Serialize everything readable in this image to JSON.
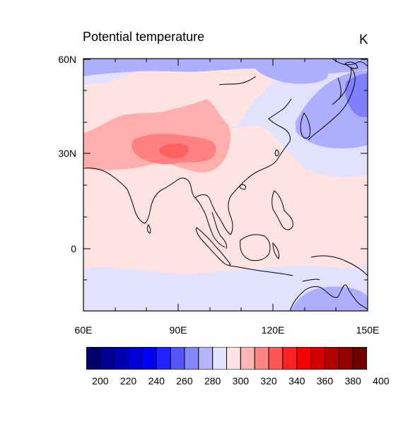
{
  "map": {
    "title": "Potential temperature",
    "units": "K",
    "lat_ticks": [
      "60N",
      "30N",
      "0"
    ],
    "lon_ticks": [
      "60E",
      "90E",
      "120E",
      "150E"
    ],
    "extent": {
      "lon_min": 60,
      "lon_max": 150,
      "lat_min": -20,
      "lat_max": 60
    }
  },
  "colorbar": {
    "colors": [
      "#00006e",
      "#000093",
      "#0000b3",
      "#0000d4",
      "#0000f5",
      "#2222ff",
      "#5555ff",
      "#8484ff",
      "#b5b5ff",
      "#e2e2ff",
      "#ffe2e2",
      "#ffb5b5",
      "#ff8484",
      "#ff5555",
      "#ff2222",
      "#f50000",
      "#d40000",
      "#b30000",
      "#930000",
      "#6e0000"
    ],
    "labels": [
      "200",
      "220",
      "240",
      "260",
      "280",
      "300",
      "320",
      "340",
      "360",
      "380",
      "400"
    ]
  },
  "field_colors": {
    "blue_dark": "#8080ff",
    "blue_mid": "#aeaeff",
    "blue_light": "#e2e2ff",
    "pink_light": "#ffe2e2",
    "pink_mid": "#ffaeae",
    "red_mid": "#ff8080",
    "red_dark": "#ff6060"
  }
}
